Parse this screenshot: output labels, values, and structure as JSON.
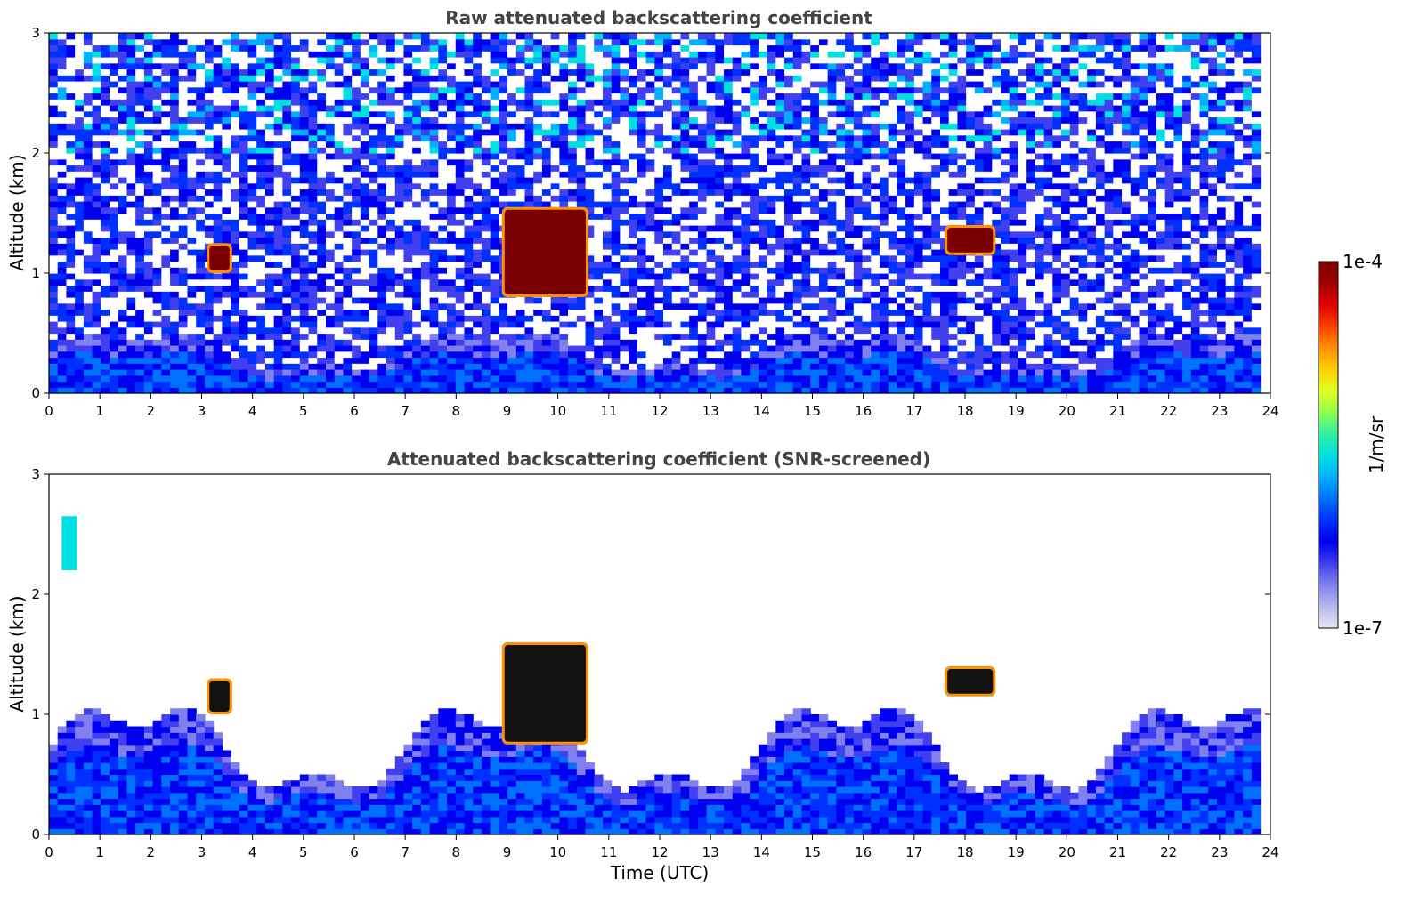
{
  "chart_data": [
    {
      "type": "heatmap",
      "title": "Raw attenuated backscattering coefficient",
      "xlabel": "",
      "ylabel": "Altitude (km)",
      "xlim": [
        0,
        24
      ],
      "ylim": [
        0,
        3
      ],
      "x_ticks": [
        "0",
        "1",
        "2",
        "3",
        "4",
        "5",
        "6",
        "7",
        "8",
        "9",
        "10",
        "11",
        "12",
        "13",
        "14",
        "15",
        "16",
        "17",
        "18",
        "19",
        "20",
        "21",
        "22",
        "23",
        "24"
      ],
      "y_ticks": [
        "0",
        "1",
        "2",
        "3"
      ],
      "data_end_time": 23.8,
      "screened": false,
      "features": [
        {
          "kind": "boundary_layer",
          "time_range": [
            0,
            23.8
          ],
          "top_km": 0.45
        },
        {
          "kind": "cloud",
          "time_range": [
            3.1,
            3.6
          ],
          "altitude_km": [
            1.0,
            1.25
          ]
        },
        {
          "kind": "cloud",
          "time_range": [
            8.9,
            10.6
          ],
          "altitude_km": [
            0.8,
            1.55
          ]
        },
        {
          "kind": "cloud",
          "time_range": [
            17.6,
            18.6
          ],
          "altitude_km": [
            1.15,
            1.4
          ]
        }
      ]
    },
    {
      "type": "heatmap",
      "title": "Attenuated backscattering coefficient (SNR-screened)",
      "xlabel": "Time (UTC)",
      "ylabel": "Altitude (km)",
      "xlim": [
        0,
        24
      ],
      "ylim": [
        0,
        3
      ],
      "x_ticks": [
        "0",
        "1",
        "2",
        "3",
        "4",
        "5",
        "6",
        "7",
        "8",
        "9",
        "10",
        "11",
        "12",
        "13",
        "14",
        "15",
        "16",
        "17",
        "18",
        "19",
        "20",
        "21",
        "22",
        "23",
        "24"
      ],
      "y_ticks": [
        "0",
        "1",
        "2",
        "3"
      ],
      "data_end_time": 23.8,
      "screened": true,
      "features": [
        {
          "kind": "aerosol_layer",
          "time_range": [
            0.25,
            0.55
          ],
          "altitude_km": [
            2.2,
            2.65
          ]
        },
        {
          "kind": "boundary_layer",
          "time_range": [
            0,
            23.8
          ],
          "top_km": 0.95
        },
        {
          "kind": "cloud",
          "time_range": [
            3.1,
            3.6
          ],
          "altitude_km": [
            1.0,
            1.3
          ]
        },
        {
          "kind": "cloud",
          "time_range": [
            8.9,
            10.6
          ],
          "altitude_km": [
            0.75,
            1.6
          ]
        },
        {
          "kind": "cloud",
          "time_range": [
            17.6,
            18.6
          ],
          "altitude_km": [
            1.15,
            1.4
          ]
        }
      ]
    }
  ],
  "colorbar": {
    "label": "1/m/sr",
    "min_label": "1e-7",
    "max_label": "1e-4",
    "scale": "log",
    "colors": [
      "#e6e6f5",
      "#b8b8ee",
      "#8080ee",
      "#4040f0",
      "#0000f0",
      "#0030ff",
      "#0070ff",
      "#00b0ff",
      "#00e0e0",
      "#30f0a0",
      "#90ff50",
      "#e0ff20",
      "#ffd000",
      "#ff9000",
      "#ff4000",
      "#e00000",
      "#a00000",
      "#7a0000"
    ]
  }
}
